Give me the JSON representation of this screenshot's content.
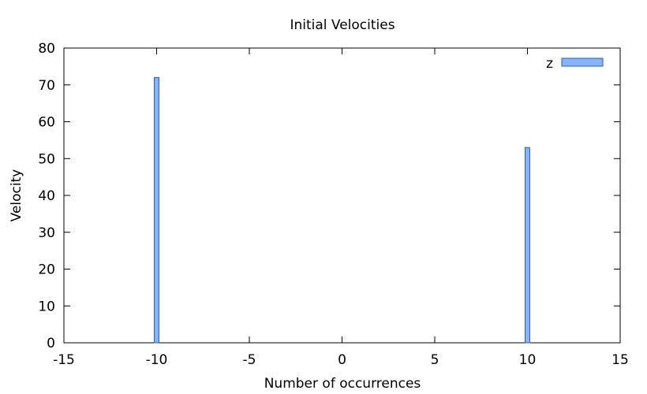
{
  "chart_data": {
    "type": "bar",
    "title": "Initial Velocities",
    "xlabel": "Number of occurrences",
    "ylabel": "Velocity",
    "xlim": [
      -15,
      15
    ],
    "ylim": [
      0,
      80
    ],
    "xticks": [
      -15,
      -10,
      -5,
      0,
      5,
      10,
      15
    ],
    "yticks": [
      0,
      10,
      20,
      30,
      40,
      50,
      60,
      70,
      80
    ],
    "bar_width": 0.25,
    "grid": false,
    "legend_position": "top-right",
    "series": [
      {
        "name": "z",
        "color": "#8ab4f8",
        "edge_color": "#1f5fbf",
        "points": [
          {
            "x": -10,
            "y": 72
          },
          {
            "x": 10,
            "y": 53
          }
        ]
      }
    ]
  }
}
